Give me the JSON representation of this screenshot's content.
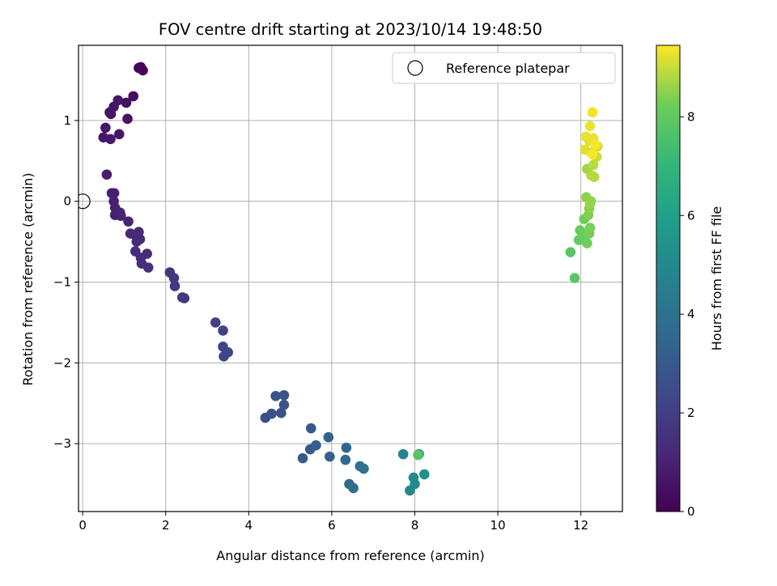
{
  "chart_data": {
    "type": "scatter",
    "title": "FOV centre drift starting at 2023/10/14 19:48:50",
    "xlabel": "Angular distance from reference (arcmin)",
    "ylabel": "Rotation from reference (arcmin)",
    "xlim": [
      -0.1,
      13.0
    ],
    "ylim": [
      -3.84,
      1.93
    ],
    "xticks": [
      0,
      2,
      4,
      6,
      8,
      10,
      12
    ],
    "yticks": [
      -3,
      -2,
      -1,
      0,
      1
    ],
    "grid": true,
    "legend": {
      "entries": [
        "Reference platepar"
      ],
      "position": "top-right"
    },
    "reference_point": {
      "x": 0,
      "y": 0,
      "marker": "hollow-circle"
    },
    "colorbar": {
      "label": "Hours from first FF file",
      "colormap": "viridis",
      "range": [
        0,
        9.45
      ],
      "ticks": [
        0,
        2,
        4,
        6,
        8
      ]
    },
    "points": [
      {
        "x": 1.35,
        "y": 1.65,
        "c": 0.2
      },
      {
        "x": 1.4,
        "y": 1.66,
        "c": 0.22
      },
      {
        "x": 1.45,
        "y": 1.62,
        "c": 0.24
      },
      {
        "x": 0.68,
        "y": 1.08,
        "c": 0.55
      },
      {
        "x": 0.75,
        "y": 1.17,
        "c": 0.6
      },
      {
        "x": 0.85,
        "y": 1.25,
        "c": 0.65
      },
      {
        "x": 1.05,
        "y": 1.22,
        "c": 0.45
      },
      {
        "x": 1.22,
        "y": 1.3,
        "c": 0.4
      },
      {
        "x": 0.65,
        "y": 1.1,
        "c": 0.58
      },
      {
        "x": 1.08,
        "y": 1.02,
        "c": 0.5
      },
      {
        "x": 0.55,
        "y": 0.91,
        "c": 0.62
      },
      {
        "x": 0.88,
        "y": 0.83,
        "c": 0.66
      },
      {
        "x": 0.5,
        "y": 0.79,
        "c": 0.7
      },
      {
        "x": 0.67,
        "y": 0.77,
        "c": 0.72
      },
      {
        "x": 0.58,
        "y": 0.33,
        "c": 0.85
      },
      {
        "x": 0.7,
        "y": 0.1,
        "c": 0.92
      },
      {
        "x": 0.76,
        "y": 0.1,
        "c": 0.94
      },
      {
        "x": 0.75,
        "y": 0.0,
        "c": 0.97
      },
      {
        "x": 0.78,
        "y": -0.08,
        "c": 1.0
      },
      {
        "x": 0.78,
        "y": -0.17,
        "c": 1.02
      },
      {
        "x": 0.9,
        "y": -0.14,
        "c": 1.05
      },
      {
        "x": 0.92,
        "y": -0.18,
        "c": 1.07
      },
      {
        "x": 1.1,
        "y": -0.25,
        "c": 1.1
      },
      {
        "x": 1.15,
        "y": -0.4,
        "c": 1.2
      },
      {
        "x": 1.27,
        "y": -0.42,
        "c": 1.22
      },
      {
        "x": 1.35,
        "y": -0.38,
        "c": 1.25
      },
      {
        "x": 1.3,
        "y": -0.5,
        "c": 1.28
      },
      {
        "x": 1.38,
        "y": -0.47,
        "c": 1.3
      },
      {
        "x": 1.27,
        "y": -0.62,
        "c": 1.32
      },
      {
        "x": 1.4,
        "y": -0.7,
        "c": 1.35
      },
      {
        "x": 1.42,
        "y": -0.77,
        "c": 1.38
      },
      {
        "x": 1.55,
        "y": -0.65,
        "c": 1.4
      },
      {
        "x": 1.58,
        "y": -0.82,
        "c": 1.42
      },
      {
        "x": 2.1,
        "y": -0.88,
        "c": 1.65
      },
      {
        "x": 2.2,
        "y": -0.95,
        "c": 1.68
      },
      {
        "x": 2.22,
        "y": -1.05,
        "c": 1.7
      },
      {
        "x": 2.4,
        "y": -1.19,
        "c": 1.75
      },
      {
        "x": 2.45,
        "y": -1.2,
        "c": 1.77
      },
      {
        "x": 3.2,
        "y": -1.5,
        "c": 2.1
      },
      {
        "x": 3.38,
        "y": -1.6,
        "c": 2.15
      },
      {
        "x": 3.38,
        "y": -1.8,
        "c": 2.18
      },
      {
        "x": 3.4,
        "y": -1.92,
        "c": 2.22
      },
      {
        "x": 3.5,
        "y": -1.87,
        "c": 2.25
      },
      {
        "x": 4.4,
        "y": -2.68,
        "c": 2.6
      },
      {
        "x": 4.55,
        "y": -2.63,
        "c": 2.65
      },
      {
        "x": 4.65,
        "y": -2.41,
        "c": 2.7
      },
      {
        "x": 4.78,
        "y": -2.62,
        "c": 2.72
      },
      {
        "x": 4.85,
        "y": -2.52,
        "c": 2.75
      },
      {
        "x": 4.85,
        "y": -2.4,
        "c": 2.78
      },
      {
        "x": 5.5,
        "y": -2.81,
        "c": 3.0
      },
      {
        "x": 5.3,
        "y": -3.18,
        "c": 3.05
      },
      {
        "x": 5.48,
        "y": -3.07,
        "c": 3.1
      },
      {
        "x": 5.62,
        "y": -3.02,
        "c": 3.15
      },
      {
        "x": 5.92,
        "y": -2.92,
        "c": 3.3
      },
      {
        "x": 5.95,
        "y": -3.16,
        "c": 3.35
      },
      {
        "x": 6.35,
        "y": -3.05,
        "c": 3.5
      },
      {
        "x": 6.33,
        "y": -3.2,
        "c": 3.55
      },
      {
        "x": 6.42,
        "y": -3.5,
        "c": 3.7
      },
      {
        "x": 6.52,
        "y": -3.55,
        "c": 3.75
      },
      {
        "x": 6.68,
        "y": -3.28,
        "c": 3.95
      },
      {
        "x": 6.77,
        "y": -3.31,
        "c": 4.0
      },
      {
        "x": 7.72,
        "y": -3.13,
        "c": 4.8
      },
      {
        "x": 7.88,
        "y": -3.58,
        "c": 5.0
      },
      {
        "x": 7.97,
        "y": -3.42,
        "c": 5.05
      },
      {
        "x": 8.0,
        "y": -3.5,
        "c": 5.1
      },
      {
        "x": 8.1,
        "y": -3.13,
        "c": 5.2
      },
      {
        "x": 8.23,
        "y": -3.38,
        "c": 5.3
      },
      {
        "x": 8.08,
        "y": -3.14,
        "c": 7.8
      },
      {
        "x": 11.75,
        "y": -0.63,
        "c": 7.8
      },
      {
        "x": 11.85,
        "y": -0.95,
        "c": 7.9
      },
      {
        "x": 11.95,
        "y": -0.48,
        "c": 8.05
      },
      {
        "x": 11.98,
        "y": -0.36,
        "c": 8.1
      },
      {
        "x": 12.05,
        "y": -0.42,
        "c": 8.15
      },
      {
        "x": 12.08,
        "y": -0.22,
        "c": 8.2
      },
      {
        "x": 12.15,
        "y": -0.52,
        "c": 8.25
      },
      {
        "x": 12.2,
        "y": -0.4,
        "c": 8.3
      },
      {
        "x": 12.22,
        "y": -0.33,
        "c": 8.35
      },
      {
        "x": 12.18,
        "y": -0.17,
        "c": 8.4
      },
      {
        "x": 12.2,
        "y": -0.09,
        "c": 8.45
      },
      {
        "x": 12.13,
        "y": 0.05,
        "c": 8.5
      },
      {
        "x": 12.24,
        "y": 0.0,
        "c": 8.55
      },
      {
        "x": 12.22,
        "y": -0.03,
        "c": 8.6
      },
      {
        "x": 12.15,
        "y": 0.4,
        "c": 8.7
      },
      {
        "x": 12.25,
        "y": 0.32,
        "c": 8.8
      },
      {
        "x": 12.32,
        "y": 0.3,
        "c": 8.85
      },
      {
        "x": 12.3,
        "y": 0.45,
        "c": 8.9
      },
      {
        "x": 12.38,
        "y": 0.55,
        "c": 9.0
      },
      {
        "x": 12.4,
        "y": 0.68,
        "c": 9.05
      },
      {
        "x": 12.25,
        "y": 0.6,
        "c": 9.1
      },
      {
        "x": 12.1,
        "y": 0.64,
        "c": 9.15
      },
      {
        "x": 12.2,
        "y": 0.75,
        "c": 9.2
      },
      {
        "x": 12.3,
        "y": 0.78,
        "c": 9.25
      },
      {
        "x": 12.12,
        "y": 0.8,
        "c": 9.28
      },
      {
        "x": 12.22,
        "y": 0.93,
        "c": 9.3
      },
      {
        "x": 12.28,
        "y": 1.1,
        "c": 9.35
      },
      {
        "x": 12.35,
        "y": 0.7,
        "c": 9.38
      },
      {
        "x": 12.28,
        "y": 0.58,
        "c": 9.4
      }
    ]
  }
}
